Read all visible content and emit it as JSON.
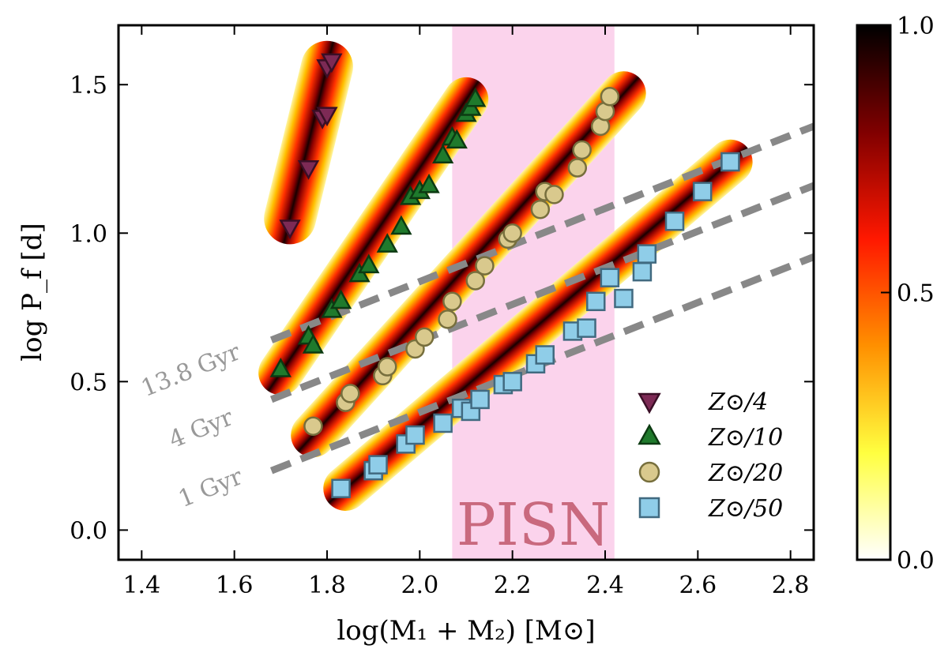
{
  "chart_data": {
    "type": "scatter",
    "xlabel": "log(M₁ + M₂) [M⊙]",
    "ylabel": "log P_f [d]",
    "xlim": [
      1.35,
      2.85
    ],
    "ylim": [
      -0.1,
      1.7
    ],
    "xticks": [
      1.4,
      1.6,
      1.8,
      2.0,
      2.2,
      2.4,
      2.6,
      2.8
    ],
    "xtick_labels": [
      "1.4",
      "1.6",
      "1.8",
      "2.0",
      "2.2",
      "2.4",
      "2.6",
      "2.8"
    ],
    "yticks": [
      0.0,
      0.5,
      1.0,
      1.5
    ],
    "ytick_labels": [
      "0.0",
      "0.5",
      "1.0",
      "1.5"
    ],
    "colorbar": {
      "range": [
        0.0,
        1.0
      ],
      "ticks": [
        0.0,
        0.5,
        1.0
      ],
      "tick_labels": [
        "0.0",
        "0.5",
        "1.0"
      ],
      "colormap": "afmhot_r",
      "colors": [
        "#ffffff",
        "#ffff40",
        "#ff9000",
        "#ff1800",
        "#800000",
        "#000000"
      ]
    },
    "shaded_region": {
      "label": "PISN",
      "x_range": [
        2.07,
        2.42
      ],
      "color": "#fbd3ec",
      "text_color": "#c9697e"
    },
    "bands": [
      {
        "name": "Z/4 band",
        "start": [
          1.72,
          1.05
        ],
        "end": [
          1.8,
          1.56
        ],
        "width": 0.14
      },
      {
        "name": "Z/10 band",
        "start": [
          1.7,
          0.53
        ],
        "end": [
          2.1,
          1.45
        ],
        "width": 0.12
      },
      {
        "name": "Z/20 band",
        "start": [
          1.77,
          0.32
        ],
        "end": [
          2.44,
          1.47
        ],
        "width": 0.12
      },
      {
        "name": "Z/50 band",
        "start": [
          1.84,
          0.14
        ],
        "end": [
          2.67,
          1.24
        ],
        "width": 0.12
      }
    ],
    "isochrones": [
      {
        "label": "13.8 Gyr",
        "x": [
          1.68,
          2.85
        ],
        "y": [
          0.64,
          1.36
        ],
        "color": "#888888"
      },
      {
        "label": "4 Gyr",
        "x": [
          1.68,
          2.85
        ],
        "y": [
          0.44,
          1.16
        ],
        "color": "#888888"
      },
      {
        "label": "1 Gyr",
        "x": [
          1.68,
          2.85
        ],
        "y": [
          0.2,
          0.92
        ],
        "color": "#888888"
      }
    ],
    "series": [
      {
        "name": "Z⊙/4",
        "marker": "triangle-down",
        "fill": "#7d2a55",
        "edge": "#3a0f26",
        "x": [
          1.72,
          1.76,
          1.79,
          1.8,
          1.8,
          1.81
        ],
        "y": [
          1.02,
          1.22,
          1.39,
          1.4,
          1.56,
          1.58
        ]
      },
      {
        "name": "Z⊙/10",
        "marker": "triangle-up",
        "fill": "#1f7a2c",
        "edge": "#0c3a12",
        "x": [
          1.7,
          1.76,
          1.77,
          1.81,
          1.83,
          1.87,
          1.89,
          1.93,
          1.96,
          1.98,
          2.0,
          2.02,
          2.05,
          2.07,
          2.08,
          2.1,
          2.11,
          2.12
        ],
        "y": [
          0.54,
          0.65,
          0.62,
          0.74,
          0.77,
          0.86,
          0.89,
          0.96,
          1.02,
          1.12,
          1.14,
          1.16,
          1.26,
          1.32,
          1.31,
          1.4,
          1.42,
          1.45
        ]
      },
      {
        "name": "Z⊙/20",
        "marker": "circle",
        "fill": "#d9c98d",
        "edge": "#776f3d",
        "x": [
          1.77,
          1.84,
          1.85,
          1.92,
          1.93,
          1.99,
          2.01,
          2.06,
          2.07,
          2.12,
          2.14,
          2.19,
          2.2,
          2.26,
          2.27,
          2.29,
          2.34,
          2.35,
          2.39,
          2.4,
          2.41
        ],
        "y": [
          0.35,
          0.43,
          0.46,
          0.52,
          0.55,
          0.61,
          0.65,
          0.71,
          0.77,
          0.84,
          0.89,
          0.98,
          1.0,
          1.08,
          1.14,
          1.13,
          1.22,
          1.28,
          1.36,
          1.41,
          1.46
        ]
      },
      {
        "name": "Z⊙/50",
        "marker": "square",
        "fill": "#8fcde8",
        "edge": "#416a80",
        "x": [
          1.83,
          1.9,
          1.91,
          1.97,
          1.99,
          2.05,
          2.09,
          2.11,
          2.13,
          2.18,
          2.2,
          2.25,
          2.27,
          2.33,
          2.36,
          2.38,
          2.41,
          2.44,
          2.48,
          2.49,
          2.55,
          2.61,
          2.67
        ],
        "y": [
          0.14,
          0.2,
          0.22,
          0.29,
          0.32,
          0.36,
          0.41,
          0.4,
          0.44,
          0.49,
          0.5,
          0.56,
          0.59,
          0.67,
          0.68,
          0.77,
          0.85,
          0.78,
          0.87,
          0.93,
          1.04,
          1.14,
          1.24
        ]
      }
    ],
    "legend": {
      "position": "lower-right",
      "entries": [
        "Z⊙/4",
        "Z⊙/10",
        "Z⊙/20",
        "Z⊙/50"
      ]
    }
  }
}
